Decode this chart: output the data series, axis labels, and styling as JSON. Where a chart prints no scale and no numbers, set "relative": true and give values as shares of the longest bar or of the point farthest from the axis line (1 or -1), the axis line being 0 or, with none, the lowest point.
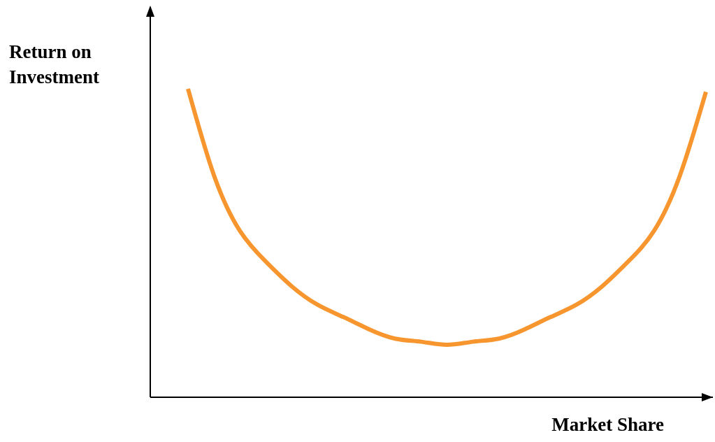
{
  "chart_data": {
    "type": "line",
    "relative": true,
    "xlabel": "Market Share",
    "ylabel": "Return on Investment",
    "color": "#f7962f",
    "categories": [
      null,
      null,
      null,
      null,
      null,
      null,
      null,
      null,
      null,
      null,
      null,
      null,
      null,
      null,
      null,
      null,
      null,
      null,
      null,
      null,
      null
    ],
    "values": [
      1,
      0.72,
      0.54,
      0.44,
      0.36,
      0.3,
      0.26,
      0.22,
      0.19,
      0.18,
      0.17,
      0.18,
      0.19,
      0.22,
      0.26,
      0.3,
      0.36,
      0.44,
      0.54,
      0.72,
      0.99
    ]
  }
}
